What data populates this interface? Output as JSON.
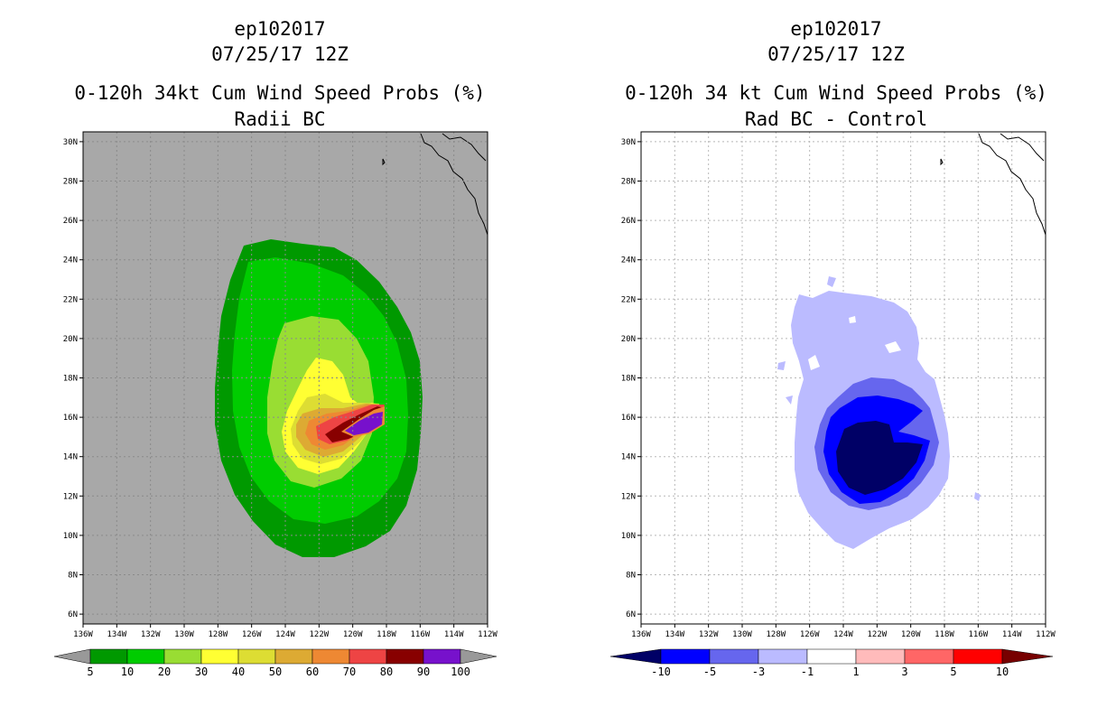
{
  "panels": [
    {
      "id": "left",
      "title_lines": [
        "ep102017",
        "07/25/17 12Z"
      ],
      "subtitle": "0-120h 34kt Cum Wind Speed Probs (%)",
      "subtitle2": "Radii BC",
      "background": "#a8a8a8",
      "colorbar": {
        "labels": [
          "5",
          "10",
          "20",
          "30",
          "40",
          "50",
          "60",
          "70",
          "80",
          "90",
          "100"
        ],
        "colors": [
          "#009900",
          "#00cc00",
          "#99dd33",
          "#ffff33",
          "#dddd33",
          "#ddaa33",
          "#ee8833",
          "#ee4444",
          "#880000",
          "#7711cc"
        ],
        "end_left": "#999999",
        "end_right": "#999999"
      }
    },
    {
      "id": "right",
      "title_lines": [
        "ep102017",
        "07/25/17 12Z"
      ],
      "subtitle": "0-120h 34 kt Cum Wind Speed Probs (%)",
      "subtitle2": "Rad BC - Control",
      "background": "#ffffff",
      "colorbar": {
        "labels": [
          "-10",
          "-5",
          "-3",
          "-1",
          "1",
          "3",
          "5",
          "10"
        ],
        "colors": [
          "#0000ff",
          "#6666ee",
          "#bbbbff",
          "#ffffff",
          "#ffbbbb",
          "#ff6666",
          "#ff0000"
        ],
        "end_left": "#000066",
        "end_right": "#770000"
      }
    }
  ],
  "chart_data": [
    {
      "type": "heatmap",
      "title": "ep102017 07/25/17 12Z",
      "subtitle": "0-120h 34kt Cum Wind Speed Probs (%) Radii BC",
      "x_ticks": [
        "136W",
        "134W",
        "132W",
        "130W",
        "128W",
        "126W",
        "124W",
        "122W",
        "120W",
        "118W",
        "116W",
        "114W",
        "112W"
      ],
      "y_ticks": [
        "6N",
        "8N",
        "10N",
        "12N",
        "14N",
        "16N",
        "18N",
        "20N",
        "22N",
        "24N",
        "26N",
        "28N",
        "30N"
      ],
      "xlim": [
        -136,
        -112
      ],
      "ylim": [
        5.5,
        30.5
      ],
      "levels": [
        5,
        10,
        20,
        30,
        40,
        50,
        60,
        70,
        80,
        90,
        100
      ],
      "peak": {
        "lon": -119,
        "lat": 15.2,
        "value": 100
      }
    },
    {
      "type": "heatmap",
      "title": "ep102017 07/25/17 12Z",
      "subtitle": "0-120h 34 kt Cum Wind Speed Probs (%) Rad BC - Control",
      "x_ticks": [
        "136W",
        "134W",
        "132W",
        "130W",
        "128W",
        "126W",
        "124W",
        "122W",
        "120W",
        "118W",
        "116W",
        "114W",
        "112W"
      ],
      "y_ticks": [
        "6N",
        "8N",
        "10N",
        "12N",
        "14N",
        "16N",
        "18N",
        "20N",
        "22N",
        "24N",
        "26N",
        "28N",
        "30N"
      ],
      "xlim": [
        -136,
        -112
      ],
      "ylim": [
        5.5,
        30.5
      ],
      "levels": [
        -10,
        -5,
        -3,
        -1,
        1,
        3,
        5,
        10
      ],
      "minimum": {
        "lon": -122.5,
        "lat": 14.0,
        "value": -10
      }
    }
  ]
}
